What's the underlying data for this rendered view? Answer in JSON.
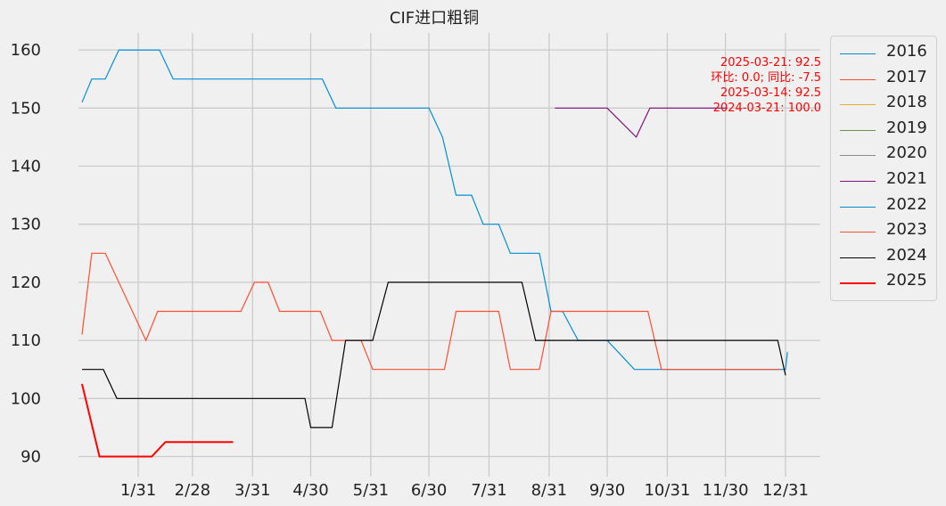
{
  "chart_data": {
    "type": "line",
    "title": "CIF进口粗铜",
    "xlabel": "",
    "ylabel": "",
    "ylim": [
      87,
      163
    ],
    "yticks": [
      90,
      100,
      110,
      120,
      130,
      140,
      150,
      160
    ],
    "xtick_labels": [
      "1/31",
      "2/28",
      "3/31",
      "4/30",
      "5/31",
      "6/30",
      "7/31",
      "8/31",
      "9/30",
      "10/31",
      "11/30",
      "12/31"
    ],
    "xtick_days": [
      31,
      59,
      90,
      120,
      151,
      181,
      212,
      243,
      273,
      304,
      334,
      365
    ],
    "x_unit": "day of year",
    "grid": true,
    "legend_position": "outside-right",
    "annotation": [
      "2025-03-21: 92.5",
      "环比: 0.0; 同比: -7.5",
      "2025-03-14: 92.5",
      "2024-03-21: 100.0"
    ],
    "annotation_color": "#ff0000",
    "series": [
      {
        "name": "2016",
        "color": "#008fd5",
        "width": 1.2,
        "points": []
      },
      {
        "name": "2017",
        "color": "#fc4f30",
        "width": 1.2,
        "points": []
      },
      {
        "name": "2018",
        "color": "#e5ae38",
        "width": 1.2,
        "points": []
      },
      {
        "name": "2019",
        "color": "#6d904f",
        "width": 1.2,
        "points": []
      },
      {
        "name": "2020",
        "color": "#8b8b8b",
        "width": 1.2,
        "points": []
      },
      {
        "name": "2021",
        "color": "#810f7c",
        "width": 1.2,
        "points": [
          [
            246,
            150
          ],
          [
            273,
            150
          ],
          [
            288,
            145
          ],
          [
            295,
            150
          ],
          [
            335,
            150
          ]
        ]
      },
      {
        "name": "2022",
        "color": "#008fd5",
        "width": 1.2,
        "points": [
          [
            2,
            151
          ],
          [
            7,
            155
          ],
          [
            14,
            155
          ],
          [
            21,
            160
          ],
          [
            42,
            160
          ],
          [
            49,
            155
          ],
          [
            126,
            155
          ],
          [
            133,
            150
          ],
          [
            181,
            150
          ],
          [
            188,
            145
          ],
          [
            195,
            135
          ],
          [
            203,
            135
          ],
          [
            209,
            130
          ],
          [
            217,
            130
          ],
          [
            223,
            125
          ],
          [
            238,
            125
          ],
          [
            244,
            115
          ],
          [
            250,
            115
          ],
          [
            258,
            110
          ],
          [
            273,
            110
          ],
          [
            287,
            105
          ],
          [
            300,
            105
          ],
          [
            302,
            105
          ],
          [
            365,
            105
          ],
          [
            366,
            108
          ]
        ]
      },
      {
        "name": "2023",
        "color": "#fc4f30",
        "width": 1.2,
        "points": [
          [
            2,
            111
          ],
          [
            7,
            125
          ],
          [
            14,
            125
          ],
          [
            35,
            110
          ],
          [
            41,
            115
          ],
          [
            84,
            115
          ],
          [
            91,
            120
          ],
          [
            98,
            120
          ],
          [
            104,
            115
          ],
          [
            125,
            115
          ],
          [
            131,
            110
          ],
          [
            146,
            110
          ],
          [
            152,
            105
          ],
          [
            189,
            105
          ],
          [
            195,
            115
          ],
          [
            217,
            115
          ],
          [
            223,
            105
          ],
          [
            238,
            105
          ],
          [
            244,
            115
          ],
          [
            294,
            115
          ],
          [
            301,
            105
          ],
          [
            362,
            105
          ]
        ]
      },
      {
        "name": "2024",
        "color": "#000000",
        "width": 1.2,
        "points": [
          [
            2,
            105
          ],
          [
            13,
            105
          ],
          [
            20,
            100
          ],
          [
            117,
            100
          ],
          [
            120,
            95
          ],
          [
            131,
            95
          ],
          [
            138,
            110
          ],
          [
            152,
            110
          ],
          [
            160,
            120
          ],
          [
            229,
            120
          ],
          [
            236,
            110
          ],
          [
            361,
            110
          ],
          [
            365,
            104
          ]
        ]
      },
      {
        "name": "2025",
        "color": "#ff0000",
        "width": 2.0,
        "points": [
          [
            2,
            102.5
          ],
          [
            11,
            90
          ],
          [
            38,
            90
          ],
          [
            45,
            92.5
          ],
          [
            80,
            92.5
          ]
        ]
      }
    ]
  }
}
